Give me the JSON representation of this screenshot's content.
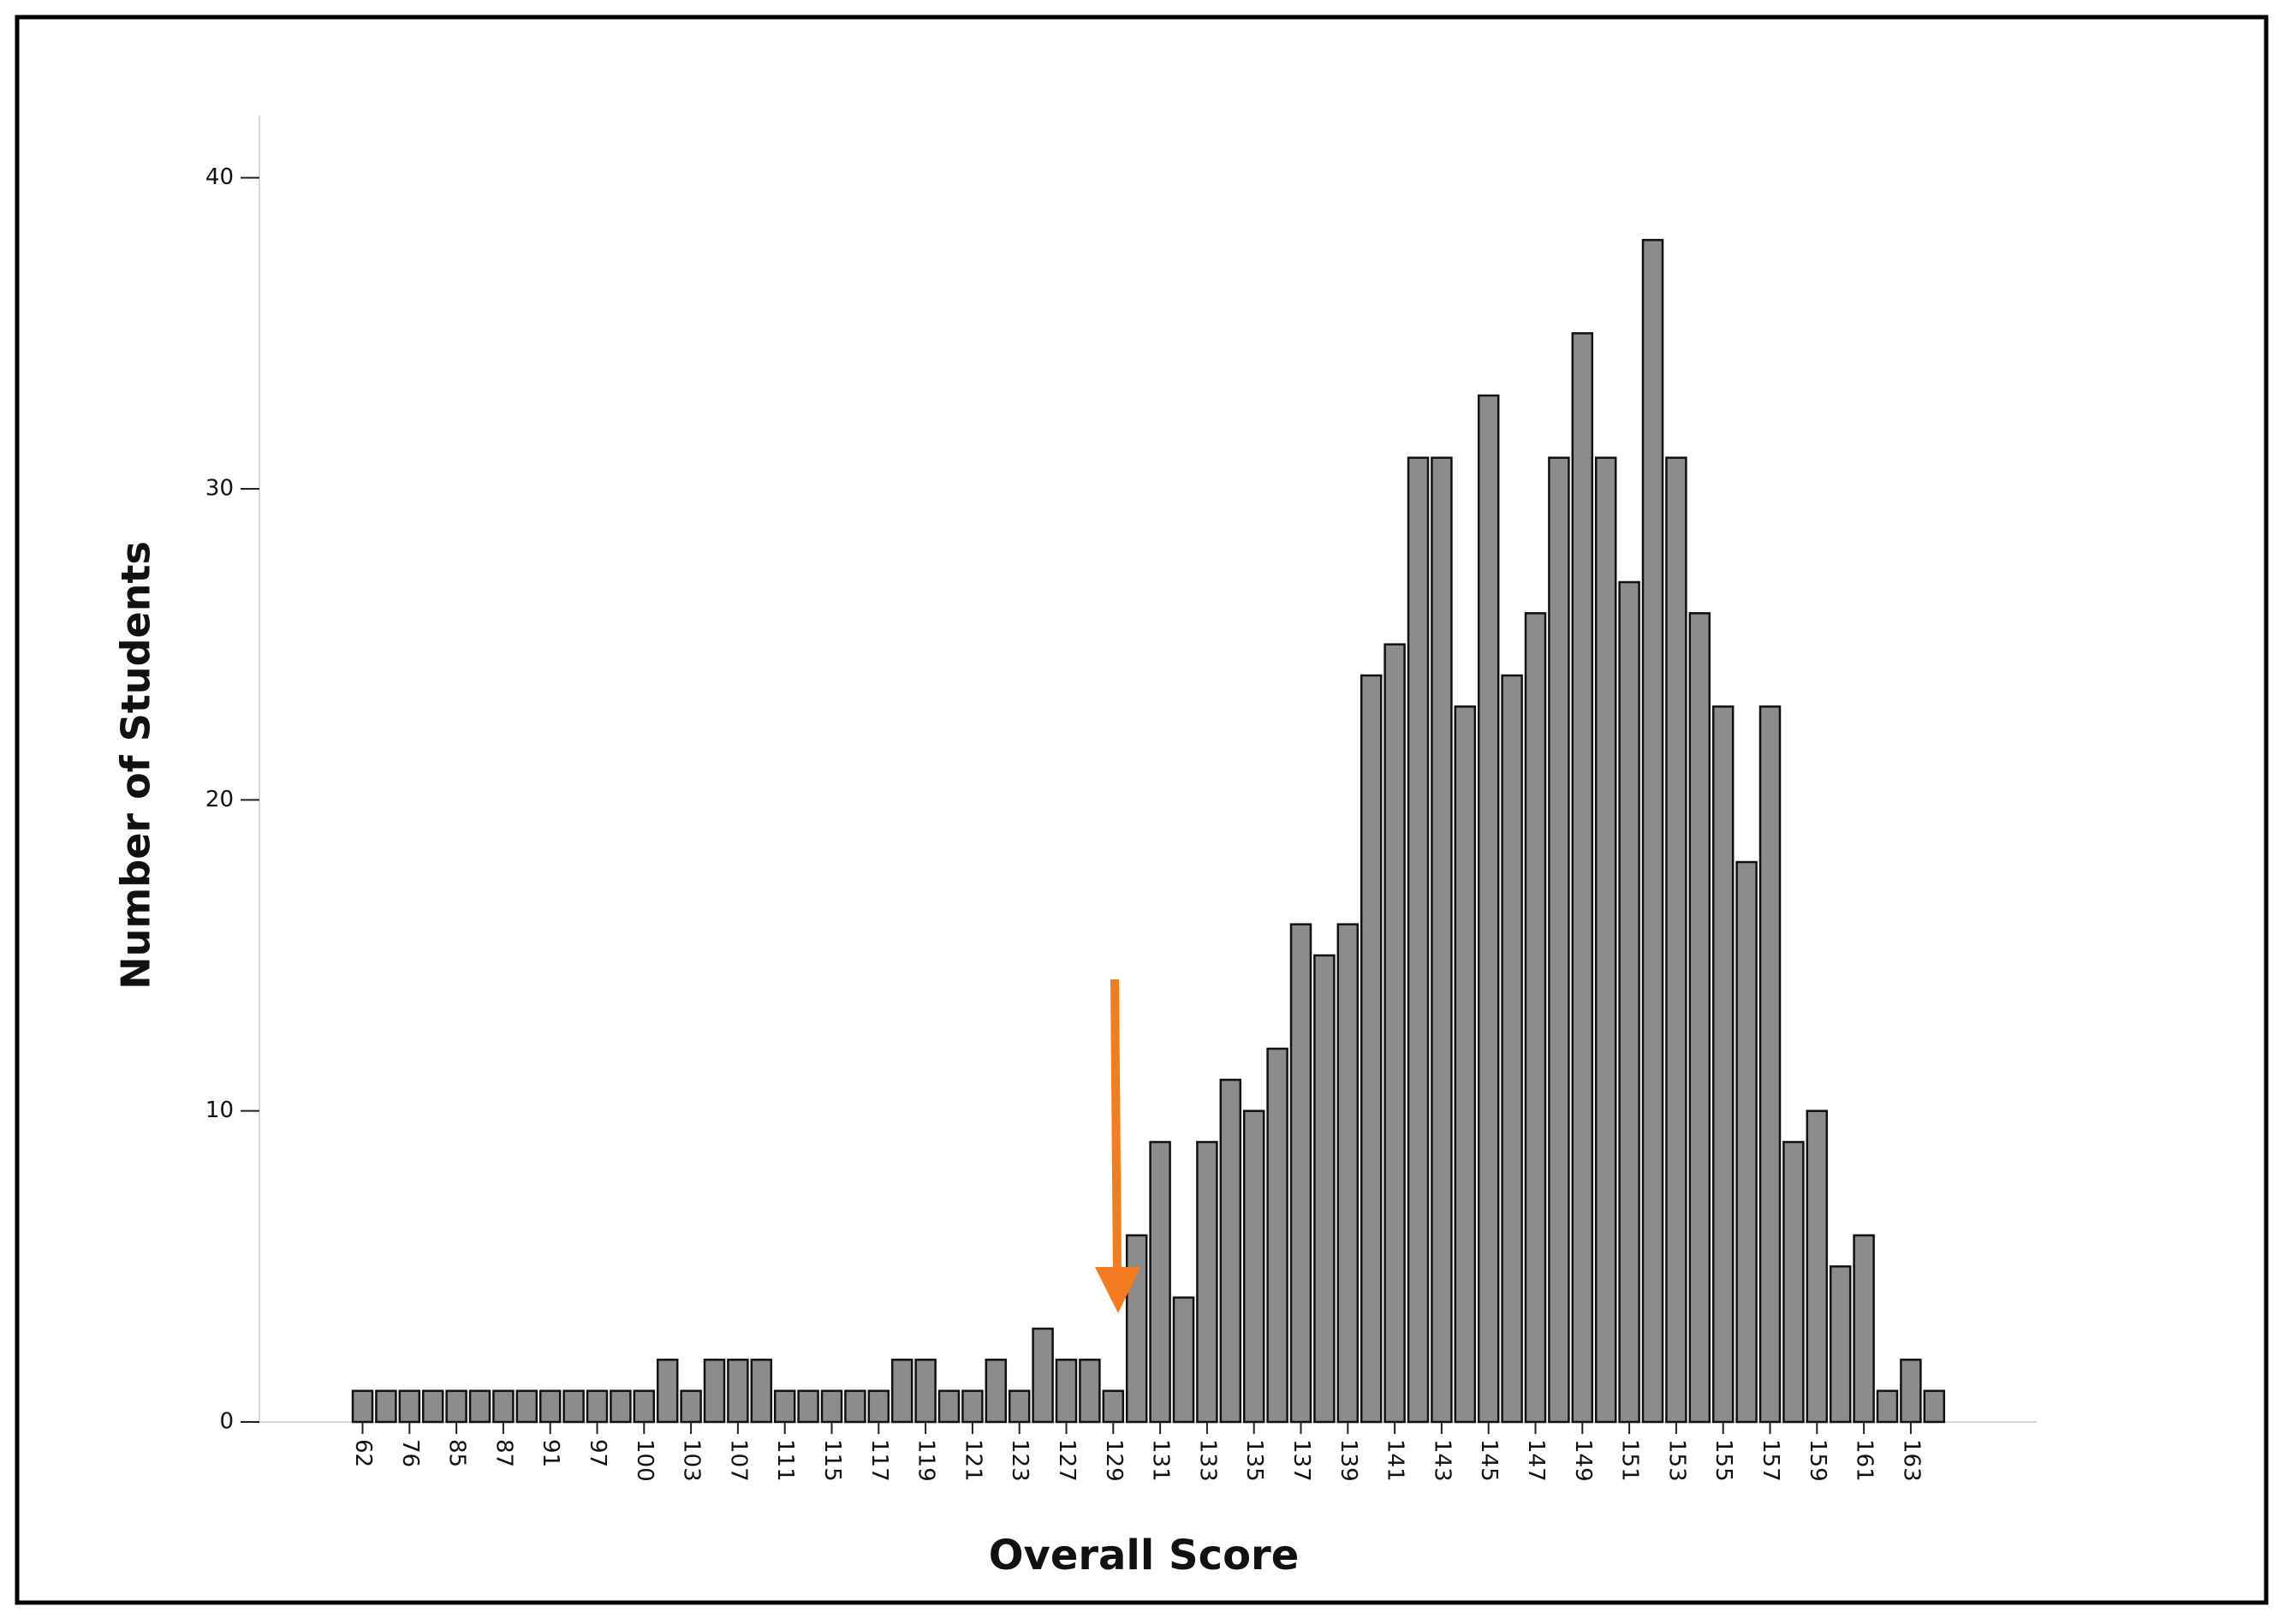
{
  "chart_data": {
    "type": "bar",
    "x_label": "Overall Score",
    "y_label": "Number of Students",
    "categories": [
      "62",
      null,
      "76",
      null,
      "85",
      null,
      "87",
      null,
      "91",
      null,
      "97",
      null,
      "100",
      null,
      "103",
      null,
      "107",
      null,
      "111",
      null,
      "115",
      null,
      "117",
      null,
      "119",
      null,
      "121",
      null,
      "123",
      null,
      "127",
      null,
      "129",
      null,
      "131",
      null,
      "133",
      null,
      "135",
      null,
      "137",
      null,
      "139",
      null,
      "141",
      null,
      "143",
      null,
      "145",
      null,
      "147",
      null,
      "149",
      null,
      "151",
      null,
      "153",
      null,
      "155",
      null,
      "157",
      null,
      "159",
      null,
      "161",
      null,
      "163",
      null
    ],
    "values": [
      1,
      1,
      1,
      1,
      1,
      1,
      1,
      1,
      1,
      1,
      1,
      1,
      1,
      2,
      1,
      2,
      2,
      2,
      1,
      1,
      1,
      1,
      1,
      2,
      2,
      1,
      1,
      2,
      1,
      3,
      2,
      2,
      1,
      6,
      9,
      4,
      9,
      11,
      10,
      12,
      16,
      15,
      16,
      24,
      25,
      31,
      31,
      23,
      33,
      24,
      26,
      31,
      35,
      31,
      27,
      38,
      31,
      26,
      23,
      18,
      23,
      9,
      10,
      5,
      6,
      1,
      2,
      1
    ],
    "color": "#8c8c8c",
    "ylim": [
      0,
      42
    ],
    "yticks": [
      0,
      10,
      20,
      30,
      40
    ]
  }
}
